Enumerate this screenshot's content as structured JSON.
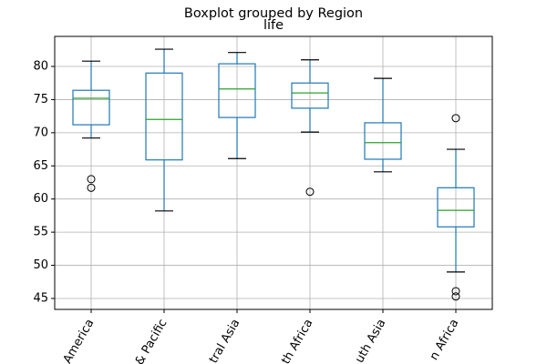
{
  "chart_data": {
    "type": "box",
    "title": "Boxplot grouped by Region",
    "subtitle": "life",
    "categories": [
      "America",
      "& Pacific",
      "tral Asia",
      "th Africa",
      "uth Asia",
      "n Africa"
    ],
    "boxes": [
      {
        "whislo": 69.2,
        "q1": 71.2,
        "med": 75.2,
        "q3": 76.4,
        "whishi": 80.8,
        "fliers": [
          63.0,
          61.7
        ]
      },
      {
        "whislo": 58.2,
        "q1": 65.9,
        "med": 72.0,
        "q3": 79.0,
        "whishi": 82.6,
        "fliers": []
      },
      {
        "whislo": 66.1,
        "q1": 72.3,
        "med": 76.6,
        "q3": 80.4,
        "whishi": 82.1,
        "fliers": []
      },
      {
        "whislo": 70.1,
        "q1": 73.7,
        "med": 76.0,
        "q3": 77.5,
        "whishi": 81.0,
        "fliers": [
          61.1
        ]
      },
      {
        "whislo": 64.1,
        "q1": 66.0,
        "med": 68.5,
        "q3": 71.5,
        "whishi": 78.2,
        "fliers": []
      },
      {
        "whislo": 49.0,
        "q1": 55.8,
        "med": 58.3,
        "q3": 61.7,
        "whishi": 67.5,
        "fliers": [
          72.2,
          46.1,
          45.3
        ]
      }
    ],
    "color": "#1f77b4",
    "median_color": "#2ca02c",
    "ylim": [
      43.35,
      84.53
    ],
    "yticks": [
      45,
      50,
      55,
      60,
      65,
      70,
      75,
      80
    ],
    "grid": true
  }
}
